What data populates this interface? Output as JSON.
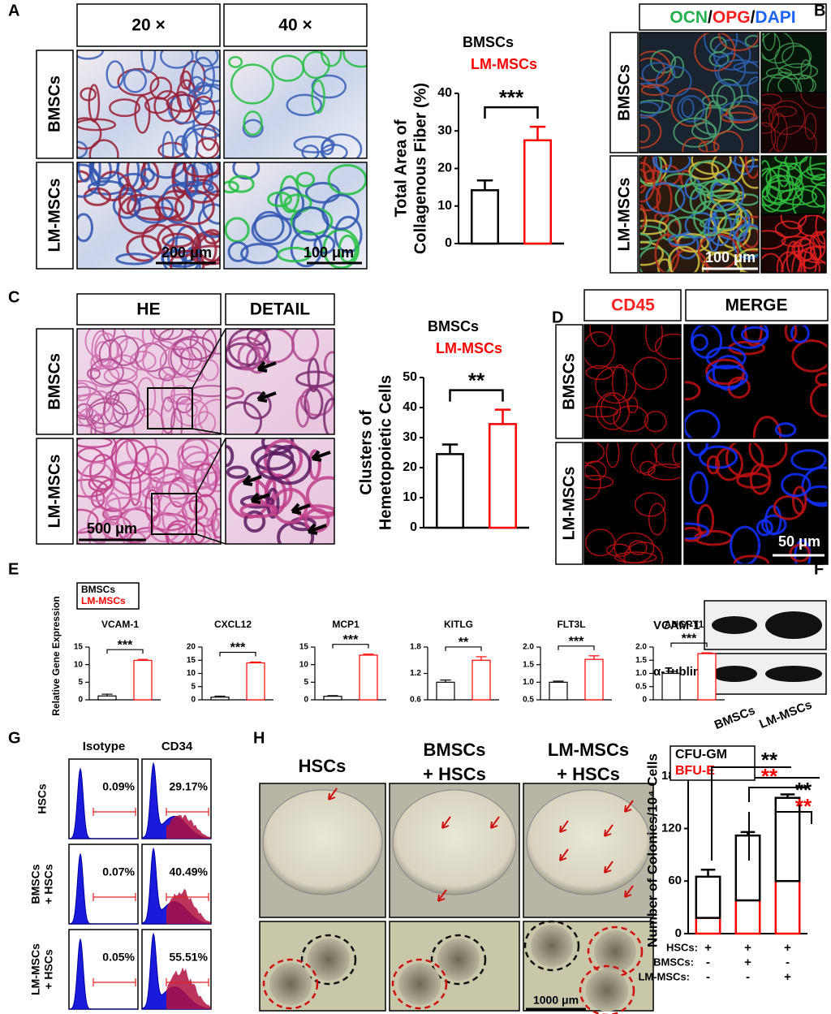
{
  "figure": {
    "A": {
      "label": "A",
      "columns": [
        "20 ×",
        "40 ×"
      ],
      "rows": [
        "BMSCs",
        "LM-MSCs"
      ],
      "scale_bars": [
        "200 μm",
        "100 μm"
      ]
    },
    "B": {
      "label": "B",
      "header": [
        "OCN",
        "/",
        "OPG",
        "/",
        "DAPI"
      ],
      "rows": [
        "BMSCs",
        "LM-MSCs"
      ],
      "scale_bar": "100 μm"
    },
    "C": {
      "label": "C",
      "columns": [
        "HE",
        "DETAIL"
      ],
      "rows": [
        "BMSCs",
        "LM-MSCs"
      ],
      "scale_bar": "500 μm"
    },
    "D": {
      "label": "D",
      "columns": [
        "CD45",
        "MERGE"
      ],
      "rows": [
        "BMSCs",
        "LM-MSCs"
      ],
      "scale_bar": "50 μm"
    },
    "E": {
      "label": "E",
      "legend": [
        "BMSCs",
        "LM-MSCs"
      ],
      "ylabel": "Relative Gene Expression"
    },
    "F": {
      "label": "F",
      "rows": [
        "VCAM-1",
        "α-Tublin"
      ],
      "columns": [
        "BMSCs",
        "LM-MSCs"
      ]
    },
    "G": {
      "label": "G",
      "columns": [
        "Isotype",
        "CD34"
      ],
      "rows": [
        [
          "HSCs"
        ],
        [
          "BMSCs",
          "+ HSCs"
        ],
        [
          "LM-MSCs",
          "+ HSCs"
        ]
      ],
      "percentages": [
        [
          "0.09%",
          "29.17%"
        ],
        [
          "0.07%",
          "40.49%"
        ],
        [
          "0.05%",
          "55.51%"
        ]
      ]
    },
    "H": {
      "label": "H",
      "columns": [
        [
          "HSCs"
        ],
        [
          "BMSCs",
          "+ HSCs"
        ],
        [
          "LM-MSCs",
          "+ HSCs"
        ]
      ],
      "scale_bar": "1000 μm"
    }
  },
  "chart_data": [
    {
      "type": "bar",
      "categories": [
        "BMSCs",
        "LM-MSCs"
      ],
      "colors": [
        "#000000",
        "#ff0000"
      ],
      "values": [
        14.2,
        27.5
      ],
      "errors": [
        2.6,
        3.6
      ],
      "ylabel": [
        "Total Area of",
        "Collagenous Fiber (%)"
      ],
      "ylim": [
        0,
        40
      ],
      "yticks": [
        0,
        10,
        20,
        30,
        40
      ],
      "significance": "***"
    },
    {
      "type": "bar",
      "categories": [
        "BMSCs",
        "LM-MSCs"
      ],
      "colors": [
        "#000000",
        "#ff0000"
      ],
      "values": [
        24.5,
        34.5
      ],
      "errors": [
        3.2,
        4.8
      ],
      "ylabel": [
        "Clusters of",
        "Hemetopoietic Cells"
      ],
      "ylim": [
        0,
        50
      ],
      "yticks": [
        0,
        10,
        20,
        30,
        40,
        50
      ],
      "significance": "**"
    },
    {
      "type": "bar",
      "title": "VCAM-1",
      "colors": [
        "#000000",
        "#ff0000"
      ],
      "values": [
        1.1,
        11.2
      ],
      "errors": [
        0.5,
        0.3
      ],
      "ylim": [
        0,
        15
      ],
      "yticks": [
        0,
        5,
        10,
        15
      ],
      "significance": "***"
    },
    {
      "type": "bar",
      "title": "CXCL12",
      "colors": [
        "#000000",
        "#ff0000"
      ],
      "values": [
        1.0,
        14.0
      ],
      "errors": [
        0.4,
        0.3
      ],
      "ylim": [
        0,
        20
      ],
      "yticks": [
        0,
        5,
        10,
        15,
        20
      ],
      "significance": "***"
    },
    {
      "type": "bar",
      "title": "MCP1",
      "colors": [
        "#000000",
        "#ff0000"
      ],
      "values": [
        1.0,
        12.7
      ],
      "errors": [
        0.2,
        0.3
      ],
      "ylim": [
        0,
        15
      ],
      "yticks": [
        0,
        5,
        10,
        15
      ],
      "significance": "***"
    },
    {
      "type": "bar",
      "title": "KITLG",
      "colors": [
        "#000000",
        "#ff0000"
      ],
      "values": [
        1.0,
        1.5
      ],
      "errors": [
        0.05,
        0.08
      ],
      "ylim": [
        0.6,
        1.8
      ],
      "yticks": [
        0.6,
        1.2,
        1.8
      ],
      "significance": "**"
    },
    {
      "type": "bar",
      "title": "FLT3L",
      "colors": [
        "#000000",
        "#ff0000"
      ],
      "values": [
        1.0,
        1.65
      ],
      "errors": [
        0.03,
        0.1
      ],
      "ylim": [
        0.5,
        2.0
      ],
      "yticks": [
        0.5,
        {
          "value": 1.0,
          "label": "1.0"
        },
        1.5,
        {
          "value": 2.0,
          "label": "2.0"
        }
      ],
      "significance": "***"
    },
    {
      "type": "bar",
      "title": "ANGPT1",
      "colors": [
        "#000000",
        "#ff0000"
      ],
      "values": [
        1.0,
        1.75
      ],
      "errors": [
        0.08,
        0.03
      ],
      "ylim": [
        0,
        2.0
      ],
      "yticks": [
        0,
        0.5,
        {
          "value": 1.0,
          "label": "1.0"
        },
        1.5,
        {
          "value": 2.0,
          "label": "2.0"
        }
      ],
      "significance": "***"
    },
    {
      "type": "stacked_bar",
      "series": [
        {
          "name": "CFU-GM",
          "color": "#000000",
          "values": [
            47,
            74,
            95
          ],
          "errors": [
            8,
            4,
            4
          ]
        },
        {
          "name": "BFU-E",
          "color": "#ff0000",
          "values": [
            18,
            38,
            60
          ],
          "errors": [
            5,
            5,
            6
          ]
        }
      ],
      "ylabel": "Number of Colonies/10⁴ Cells",
      "ylim": [
        0,
        190
      ],
      "yticks": [
        0,
        60,
        120,
        180
      ],
      "significance": [
        [
          "**",
          "**"
        ],
        [
          "**",
          "**"
        ]
      ],
      "conditions": {
        "rows": [
          "HSCs:",
          "BMSCs:",
          "LM-MSCs:"
        ],
        "cells": [
          [
            "+",
            "+",
            "+"
          ],
          [
            "-",
            "+",
            "-"
          ],
          [
            "-",
            "-",
            "+"
          ]
        ]
      }
    }
  ]
}
